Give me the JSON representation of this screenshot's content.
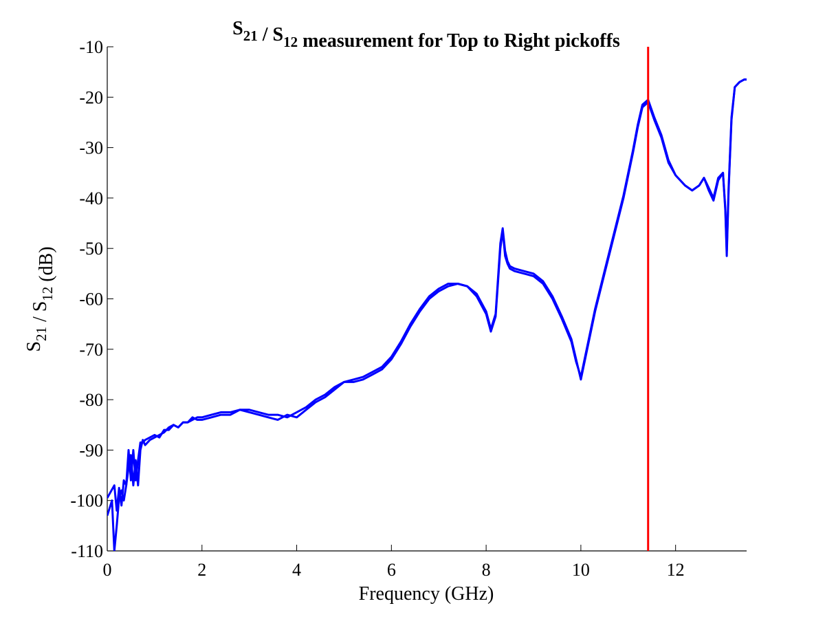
{
  "chart_data": {
    "type": "line",
    "title": {
      "parts": [
        {
          "text": "S",
          "sub": "21"
        },
        {
          "text": " / S",
          "sub": "12"
        },
        {
          "text": " measurement for Top to Right pickoffs",
          "sub": ""
        }
      ]
    },
    "xlabel": "Frequency (GHz)",
    "ylabel": {
      "parts": [
        {
          "text": "S",
          "sub": "21"
        },
        {
          "text": " / S",
          "sub": "12"
        },
        {
          "text": " (dB)",
          "sub": ""
        }
      ]
    },
    "xlim": [
      0,
      13.5
    ],
    "ylim": [
      -110,
      -10
    ],
    "xticks": [
      0,
      2,
      4,
      6,
      8,
      10,
      12
    ],
    "xtick_labels": [
      "0",
      "2",
      "4",
      "6",
      "8",
      "10",
      "12"
    ],
    "yticks": [
      -110,
      -100,
      -90,
      -80,
      -70,
      -60,
      -50,
      -40,
      -30,
      -20,
      -10
    ],
    "ytick_labels": [
      "-110",
      "-100",
      "-90",
      "-80",
      "-70",
      "-60",
      "-50",
      "-40",
      "-30",
      "-20",
      "-10"
    ],
    "grid": false,
    "colors": {
      "series": "#0000ff",
      "marker": "#ff0000"
    },
    "vertical_marker": {
      "x": 11.42
    },
    "series": [
      {
        "x": [
          0.0,
          0.15,
          0.2,
          0.25,
          0.3,
          0.35,
          0.4,
          0.45,
          0.5,
          0.55,
          0.6,
          0.65,
          0.7,
          0.75,
          0.8,
          0.9,
          1.0,
          1.1,
          1.2,
          1.3,
          1.4,
          1.5,
          1.6,
          1.7,
          1.8,
          1.9,
          2.0,
          2.2,
          2.4,
          2.6,
          2.8,
          3.0,
          3.2,
          3.4,
          3.6,
          3.8,
          4.0,
          4.2,
          4.4,
          4.6,
          4.8,
          5.0,
          5.2,
          5.4,
          5.6,
          5.8,
          6.0,
          6.2,
          6.4,
          6.6,
          6.8,
          7.0,
          7.2,
          7.4,
          7.6,
          7.8,
          8.0,
          8.1,
          8.2,
          8.3,
          8.35,
          8.4,
          8.45,
          8.5,
          8.6,
          8.8,
          9.0,
          9.2,
          9.4,
          9.6,
          9.8,
          9.9,
          10.0,
          10.1,
          10.3,
          10.5,
          10.7,
          10.9,
          11.1,
          11.2,
          11.3,
          11.42,
          11.55,
          11.7,
          11.85,
          12.0,
          12.2,
          12.35,
          12.5,
          12.6,
          12.7,
          12.8,
          12.9,
          13.0,
          13.05,
          13.08,
          13.12,
          13.18,
          13.25,
          13.35,
          13.45,
          13.5
        ],
        "values": [
          -99.5,
          -97.0,
          -102.0,
          -97.5,
          -101.0,
          -96.0,
          -97.0,
          -90.0,
          -96.0,
          -90.0,
          -96.0,
          -92.0,
          -88.5,
          -88.5,
          -88.0,
          -87.5,
          -87.0,
          -87.5,
          -86.0,
          -86.0,
          -85.0,
          -85.5,
          -84.5,
          -84.5,
          -84.0,
          -83.5,
          -83.5,
          -83.0,
          -82.5,
          -82.5,
          -82.0,
          -82.0,
          -82.5,
          -83.0,
          -83.0,
          -83.5,
          -82.5,
          -81.5,
          -80.0,
          -79.0,
          -77.5,
          -76.5,
          -76.0,
          -75.5,
          -74.5,
          -73.5,
          -71.5,
          -68.5,
          -65.0,
          -62.0,
          -59.5,
          -58.0,
          -57.0,
          -57.0,
          -57.5,
          -59.0,
          -62.5,
          -66.0,
          -63.0,
          -49.0,
          -46.0,
          -50.5,
          -52.5,
          -53.5,
          -54.0,
          -54.5,
          -55.0,
          -56.5,
          -59.5,
          -63.5,
          -68.0,
          -72.0,
          -76.0,
          -71.5,
          -62.5,
          -55.0,
          -47.5,
          -40.0,
          -31.0,
          -26.0,
          -22.0,
          -21.0,
          -24.5,
          -28.0,
          -33.0,
          -35.5,
          -37.5,
          -38.5,
          -37.5,
          -36.0,
          -38.0,
          -40.0,
          -36.0,
          -35.0,
          -42.0,
          -50.5,
          -38.0,
          -24.0,
          -18.0,
          -17.0,
          -16.5,
          -16.5
        ]
      },
      {
        "x": [
          0.0,
          0.1,
          0.15,
          0.2,
          0.25,
          0.3,
          0.35,
          0.4,
          0.45,
          0.5,
          0.55,
          0.6,
          0.65,
          0.7,
          0.75,
          0.8,
          0.9,
          1.0,
          1.1,
          1.2,
          1.3,
          1.4,
          1.5,
          1.6,
          1.7,
          1.8,
          1.9,
          2.0,
          2.2,
          2.4,
          2.6,
          2.8,
          3.0,
          3.2,
          3.4,
          3.6,
          3.8,
          4.0,
          4.2,
          4.4,
          4.6,
          4.8,
          5.0,
          5.2,
          5.4,
          5.6,
          5.8,
          6.0,
          6.2,
          6.4,
          6.6,
          6.8,
          7.0,
          7.2,
          7.4,
          7.6,
          7.8,
          8.0,
          8.1,
          8.2,
          8.3,
          8.35,
          8.4,
          8.45,
          8.5,
          8.6,
          8.8,
          9.0,
          9.2,
          9.4,
          9.6,
          9.8,
          9.9,
          10.0,
          10.1,
          10.3,
          10.5,
          10.7,
          10.9,
          11.1,
          11.2,
          11.3,
          11.42,
          11.55,
          11.7,
          11.85,
          12.0,
          12.2,
          12.35,
          12.5,
          12.6,
          12.7,
          12.8,
          12.9,
          13.0,
          13.05,
          13.08,
          13.12,
          13.18,
          13.25,
          13.35,
          13.45,
          13.5
        ],
        "values": [
          -103.0,
          -100.0,
          -110.0,
          -105.0,
          -99.5,
          -98.0,
          -100.0,
          -97.0,
          -93.5,
          -91.0,
          -97.0,
          -92.0,
          -97.0,
          -90.0,
          -88.0,
          -89.0,
          -88.0,
          -87.5,
          -87.0,
          -86.5,
          -85.5,
          -85.0,
          -85.5,
          -84.5,
          -84.5,
          -83.5,
          -84.0,
          -84.0,
          -83.5,
          -83.0,
          -83.0,
          -82.0,
          -82.5,
          -83.0,
          -83.5,
          -84.0,
          -83.0,
          -83.5,
          -82.0,
          -80.5,
          -79.5,
          -78.0,
          -76.5,
          -76.5,
          -76.0,
          -75.0,
          -74.0,
          -72.0,
          -69.0,
          -65.5,
          -62.5,
          -60.0,
          -58.5,
          -57.5,
          -57.0,
          -57.5,
          -59.5,
          -63.0,
          -66.5,
          -63.5,
          -50.0,
          -46.5,
          -51.5,
          -53.0,
          -54.0,
          -54.5,
          -55.0,
          -55.5,
          -57.0,
          -60.0,
          -64.0,
          -68.5,
          -72.5,
          -75.5,
          -71.0,
          -62.0,
          -54.5,
          -47.0,
          -39.5,
          -30.5,
          -25.5,
          -21.5,
          -20.5,
          -24.0,
          -27.5,
          -32.5,
          -35.5,
          -37.5,
          -38.5,
          -37.5,
          -36.0,
          -38.5,
          -40.5,
          -36.5,
          -35.0,
          -42.5,
          -51.5,
          -38.5,
          -24.5,
          -18.0,
          -17.0,
          -16.5,
          -16.5
        ]
      }
    ]
  }
}
